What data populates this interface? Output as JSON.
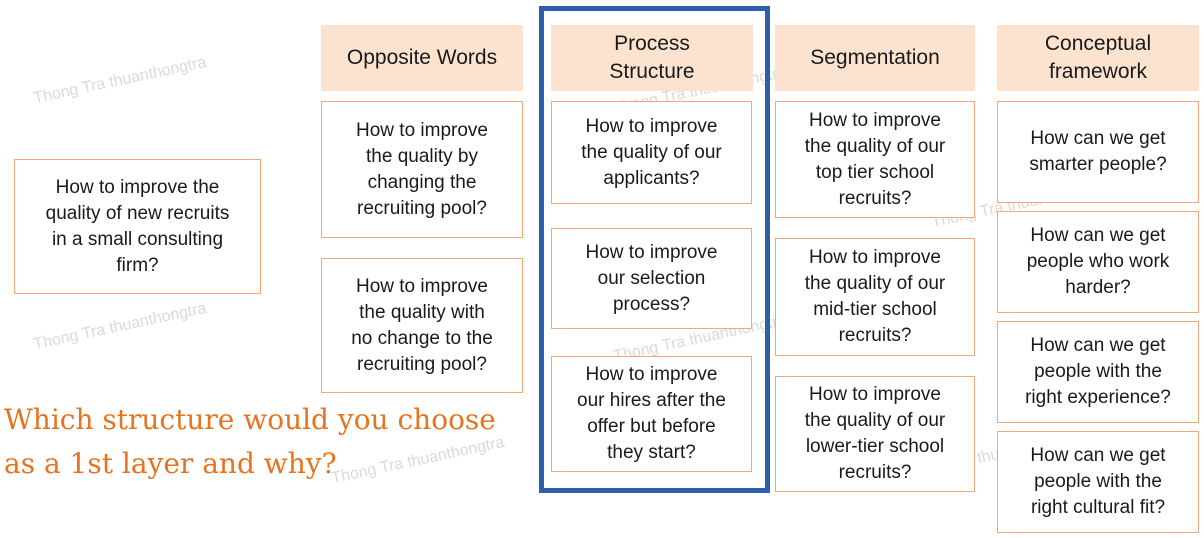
{
  "root": {
    "text": "How to improve the\nquality of new recruits\nin a small consulting\nfirm?"
  },
  "question": "Which structure would you choose\nas a 1st layer and why?",
  "watermark": "Thong Tra thuanthongtra",
  "columns": [
    {
      "title": "Opposite Words",
      "items": [
        "How to improve\nthe quality by\nchanging the\nrecruiting pool?",
        "How to improve\nthe quality with\nno change to the\nrecruiting pool?"
      ]
    },
    {
      "title": "Process\nStructure",
      "items": [
        "How to improve\nthe quality of our\napplicants?",
        "How to improve\nour selection\nprocess?",
        "How to improve\nour hires after the\noffer but before\nthey start?"
      ]
    },
    {
      "title": "Segmentation",
      "items": [
        "How to improve\nthe quality of our\ntop tier school\nrecruits?",
        "How to improve\nthe quality of our\nmid-tier school\nrecruits?",
        "How to improve\nthe quality of our\nlower-tier school\nrecruits?"
      ]
    },
    {
      "title": "Conceptual\nframework",
      "items": [
        "How can we get\nsmarter people?",
        "How can we get\npeople who work\nharder?",
        "How can we get\npeople with the\nright experience?",
        "How can we get\npeople with the\nright cultural fit?"
      ]
    }
  ],
  "colors": {
    "accent": "#e8731f",
    "border": "#f0a77a",
    "header_bg": "#fbe3cf",
    "highlight": "#2e5ea6"
  }
}
